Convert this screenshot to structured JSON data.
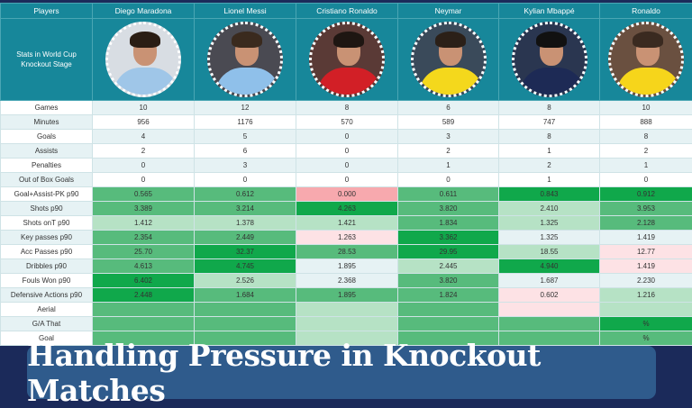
{
  "header": {
    "players_label": "Players",
    "stats_label": "Stats in World Cup Knockout Stage"
  },
  "players": [
    {
      "name": "Diego Maradona",
      "shirt": "#9fc6e8",
      "hair": "#2a1d14",
      "bg": "#d8dde3"
    },
    {
      "name": "Lionel Messi",
      "shirt": "#8fc0ea",
      "hair": "#3a2a1e",
      "bg": "#4a4a52"
    },
    {
      "name": "Cristiano Ronaldo",
      "shirt": "#d21f26",
      "hair": "#1e1612",
      "bg": "#5a3a36"
    },
    {
      "name": "Neymar",
      "shirt": "#f4d81c",
      "hair": "#2b2018",
      "bg": "#3a4a5a"
    },
    {
      "name": "Kylian Mbappé",
      "shirt": "#1d2a55",
      "hair": "#111",
      "bg": "#2a3650"
    },
    {
      "name": "Ronaldo",
      "shirt": "#f6d51b",
      "hair": "#3a2a20",
      "bg": "#6a5040"
    }
  ],
  "rows": [
    {
      "label": "Games",
      "values": [
        "10",
        "12",
        "8",
        "6",
        "8",
        "10"
      ]
    },
    {
      "label": "Minutes",
      "values": [
        "956",
        "1176",
        "570",
        "589",
        "747",
        "888"
      ]
    },
    {
      "label": "Goals",
      "values": [
        "4",
        "5",
        "0",
        "3",
        "8",
        "8"
      ]
    },
    {
      "label": "Assists",
      "values": [
        "2",
        "6",
        "0",
        "2",
        "1",
        "2"
      ]
    },
    {
      "label": "Penalties",
      "values": [
        "0",
        "3",
        "0",
        "1",
        "2",
        "1"
      ]
    },
    {
      "label": "Out of Box Goals",
      "values": [
        "0",
        "0",
        "0",
        "0",
        "1",
        "0"
      ]
    },
    {
      "label": "Goal+Assist-PK p90",
      "values": [
        "0.565",
        "0.612",
        "0.000",
        "0.611",
        "0.843",
        "0.912"
      ],
      "colors": [
        "#57bb7c",
        "#57bb7c",
        "#f7a9ae",
        "#57bb7c",
        "#10a84b",
        "#10a84b"
      ]
    },
    {
      "label": "Shots p90",
      "values": [
        "3.389",
        "3.214",
        "4.263",
        "3.820",
        "2.410",
        "3.953"
      ],
      "colors": [
        "#57bb7c",
        "#57bb7c",
        "#10a84b",
        "#57bb7c",
        "#b6e2c5",
        "#57bb7c"
      ]
    },
    {
      "label": "Shots onT p90",
      "values": [
        "1.412",
        "1.378",
        "1.421",
        "1.834",
        "1.325",
        "2.128"
      ],
      "colors": [
        "#b6e2c5",
        "#b6e2c5",
        "#b6e2c5",
        "#57bb7c",
        "#b6e2c5",
        "#57bb7c"
      ]
    },
    {
      "label": "Key passes p90",
      "values": [
        "2.354",
        "2.449",
        "1.263",
        "3.362",
        "1.325",
        "1.419"
      ],
      "colors": [
        "#57bb7c",
        "#57bb7c",
        "#fde2e5",
        "#10a84b",
        "#e6f2f4",
        "#e6f2f4"
      ]
    },
    {
      "label": "Acc Passes p90",
      "values": [
        "25.70",
        "32.37",
        "28.53",
        "29.95",
        "18.55",
        "12.77"
      ],
      "colors": [
        "#57bb7c",
        "#10a84b",
        "#57bb7c",
        "#10a84b",
        "#b6e2c5",
        "#fde2e5"
      ]
    },
    {
      "label": "Dribbles p90",
      "values": [
        "4.613",
        "4.745",
        "1.895",
        "2.445",
        "4.940",
        "1.419"
      ],
      "colors": [
        "#57bb7c",
        "#10a84b",
        "#e6f2f4",
        "#b6e2c5",
        "#10a84b",
        "#fde2e5"
      ]
    },
    {
      "label": "Fouls Won p90",
      "values": [
        "6.402",
        "2.526",
        "2.368",
        "3.820",
        "1.687",
        "2.230"
      ],
      "colors": [
        "#10a84b",
        "#b6e2c5",
        "#e6f2f4",
        "#57bb7c",
        "#e6f2f4",
        "#e6f2f4"
      ]
    },
    {
      "label": "Defensive Actions p90",
      "values": [
        "2.448",
        "1.684",
        "1.895",
        "1.824",
        "0.602",
        "1.216"
      ],
      "colors": [
        "#10a84b",
        "#57bb7c",
        "#57bb7c",
        "#57bb7c",
        "#fde2e5",
        "#b6e2c5"
      ]
    },
    {
      "label": "Aerial",
      "values": [
        "",
        "",
        "",
        "",
        "",
        ""
      ],
      "colors": [
        "#57bb7c",
        "#57bb7c",
        "#b6e2c5",
        "#57bb7c",
        "#fde2e5",
        "#b6e2c5"
      ]
    },
    {
      "label": "G/A That",
      "values": [
        "",
        "",
        "",
        "",
        "",
        "%"
      ],
      "colors": [
        "#57bb7c",
        "#57bb7c",
        "#b6e2c5",
        "#57bb7c",
        "#57bb7c",
        "#10a84b"
      ]
    },
    {
      "label": "Goal",
      "values": [
        "",
        "",
        "",
        "",
        "",
        "%"
      ],
      "colors": [
        "#57bb7c",
        "#57bb7c",
        "#b6e2c5",
        "#57bb7c",
        "#57bb7c",
        "#57bb7c"
      ]
    }
  ],
  "banner": {
    "title": "Handling Pressure in Knockout Matches"
  }
}
